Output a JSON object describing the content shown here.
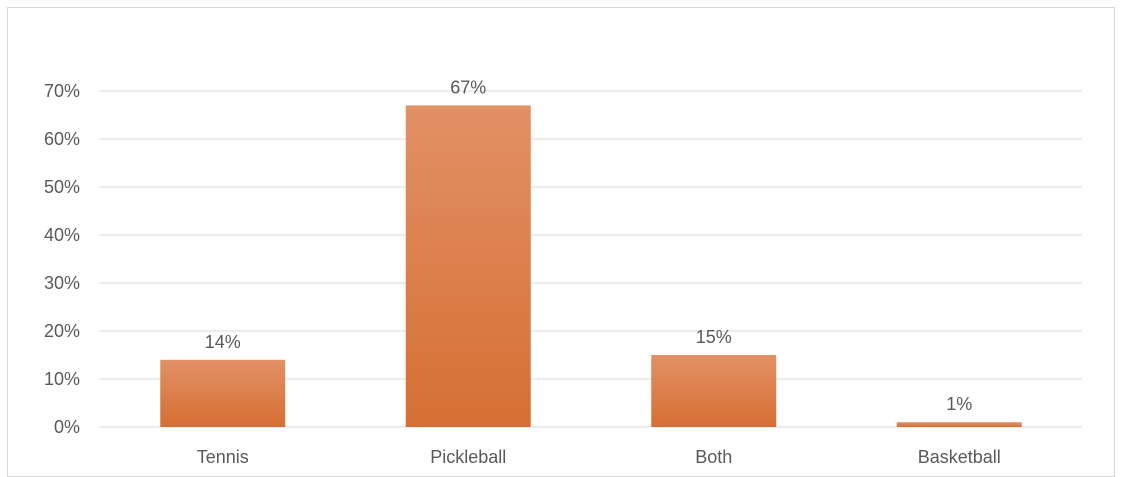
{
  "chart_data": {
    "type": "bar",
    "categories": [
      "Tennis",
      "Pickleball",
      "Both",
      "Basketball"
    ],
    "values": [
      14,
      67,
      15,
      1
    ],
    "value_labels": [
      "14%",
      "67%",
      "15%",
      "1%"
    ],
    "yticks": [
      "0%",
      "10%",
      "20%",
      "30%",
      "40%",
      "50%",
      "60%",
      "70%"
    ],
    "ylim": [
      0,
      70
    ],
    "grid": true,
    "bar_color_top": "#e29066",
    "bar_color_bottom": "#d66f33",
    "grid_color": "#d9d9d9",
    "text_color": "#595959"
  }
}
